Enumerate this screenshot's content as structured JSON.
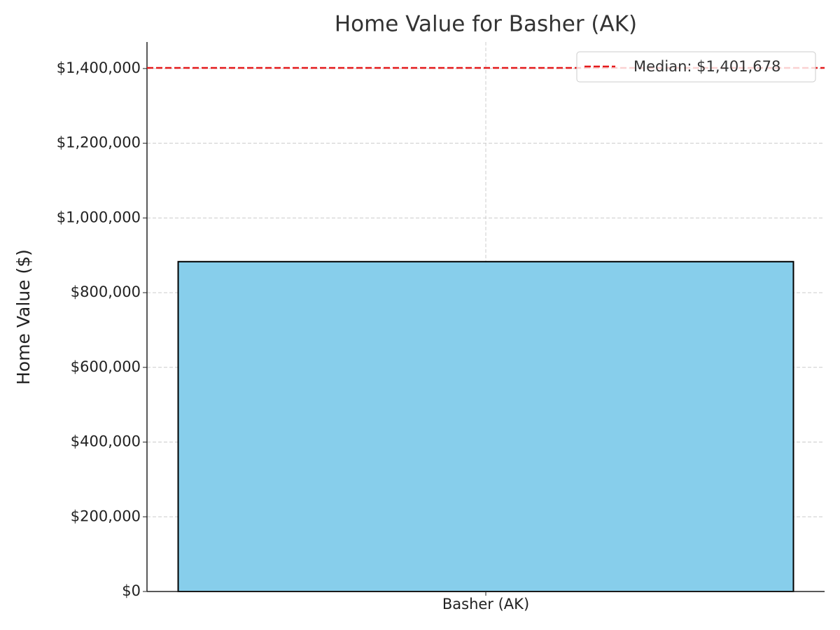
{
  "chart_data": {
    "type": "bar",
    "title": "Home Value for Basher (AK)",
    "ylabel": "Home Value ($)",
    "categories": [
      "Basher (AK)"
    ],
    "values": [
      883000
    ],
    "color": "#87ceeb",
    "edgecolor": "#000000",
    "ylim": [
      0,
      1471000
    ],
    "yticks": [
      {
        "value": 0,
        "label": "$0"
      },
      {
        "value": 200000,
        "label": "$200,000"
      },
      {
        "value": 400000,
        "label": "$400,000"
      },
      {
        "value": 600000,
        "label": "$600,000"
      },
      {
        "value": 800000,
        "label": "$800,000"
      },
      {
        "value": 1000000,
        "label": "$1,000,000"
      },
      {
        "value": 1200000,
        "label": "$1,200,000"
      },
      {
        "value": 1400000,
        "label": "$1,400,000"
      }
    ],
    "grid": true,
    "legend": "upper right",
    "reference_line": {
      "label": "Median: $1,401,678",
      "value": 1401678,
      "color": "#e41a1c"
    }
  }
}
